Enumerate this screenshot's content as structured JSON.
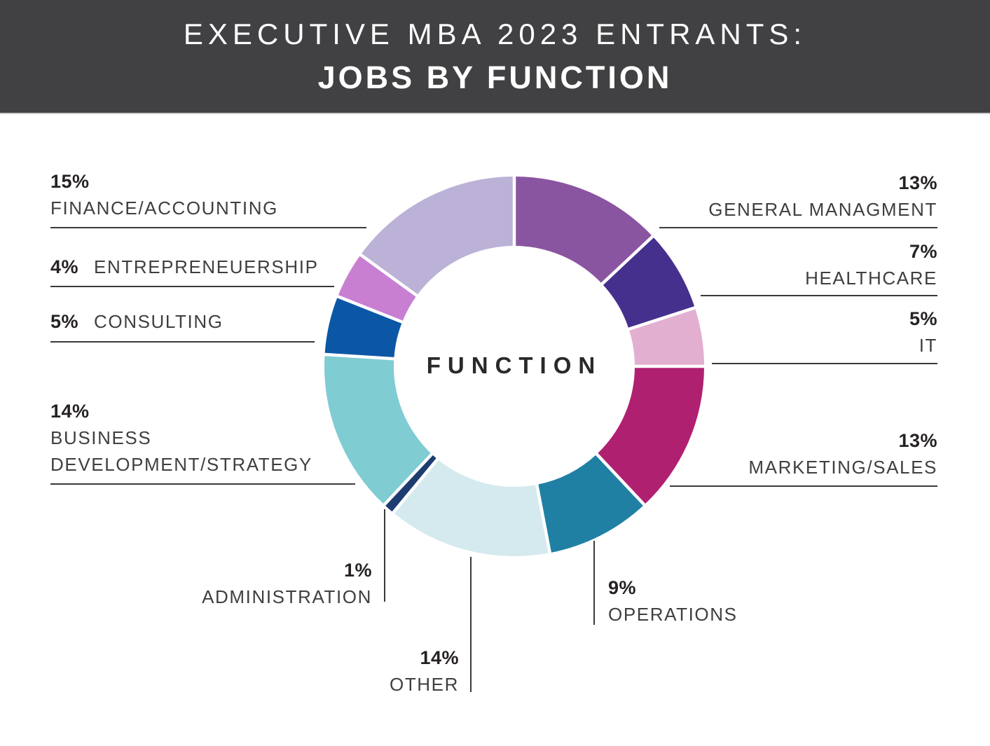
{
  "header": {
    "title_line1": "EXECUTIVE MBA 2023 ENTRANTS:",
    "title_line2": "JOBS BY FUNCTION",
    "bg_color": "#414043",
    "text_color": "#ffffff"
  },
  "chart_data": {
    "type": "pie",
    "subtype": "donut",
    "title": "Executive MBA 2023 Entrants: Jobs by Function",
    "center_label": "FUNCTION",
    "start_angle_deg": 0,
    "direction": "clockwise",
    "legend_position": "around-chart",
    "separator_color": "#ffffff",
    "slices": [
      {
        "id": "general-management",
        "label": "GENERAL MANAGMENT",
        "pct": "13%",
        "value": 13,
        "color": "#8a55a0"
      },
      {
        "id": "healthcare",
        "label": "HEALTHCARE",
        "pct": "7%",
        "value": 7,
        "color": "#46308e"
      },
      {
        "id": "it",
        "label": "IT",
        "pct": "5%",
        "value": 5,
        "color": "#e2afd1"
      },
      {
        "id": "marketing-sales",
        "label": "MARKETING/SALES",
        "pct": "13%",
        "value": 13,
        "color": "#b02071"
      },
      {
        "id": "operations",
        "label": "OPERATIONS",
        "pct": "9%",
        "value": 9,
        "color": "#1f80a3"
      },
      {
        "id": "other",
        "label": "OTHER",
        "pct": "14%",
        "value": 14,
        "color": "#d5eaee"
      },
      {
        "id": "administration",
        "label": "ADMINISTRATION",
        "pct": "1%",
        "value": 1,
        "color": "#1d3d70"
      },
      {
        "id": "business-development-strategy",
        "label": "BUSINESS DEVELOPMENT/STRATEGY",
        "label_lines": [
          "BUSINESS",
          "DEVELOPMENT/STRATEGY"
        ],
        "pct": "14%",
        "value": 14,
        "color": "#7fccd3"
      },
      {
        "id": "consulting",
        "label": "CONSULTING",
        "pct": "5%",
        "value": 5,
        "color": "#0b57a6"
      },
      {
        "id": "entrepreneurship",
        "label": "ENTREPRENEUERSHIP",
        "pct": "4%",
        "value": 4,
        "color": "#c87fd2"
      },
      {
        "id": "finance-accounting",
        "label": "FINANCE/ACCOUNTING",
        "pct": "15%",
        "value": 15,
        "color": "#bcb1d6"
      }
    ]
  }
}
